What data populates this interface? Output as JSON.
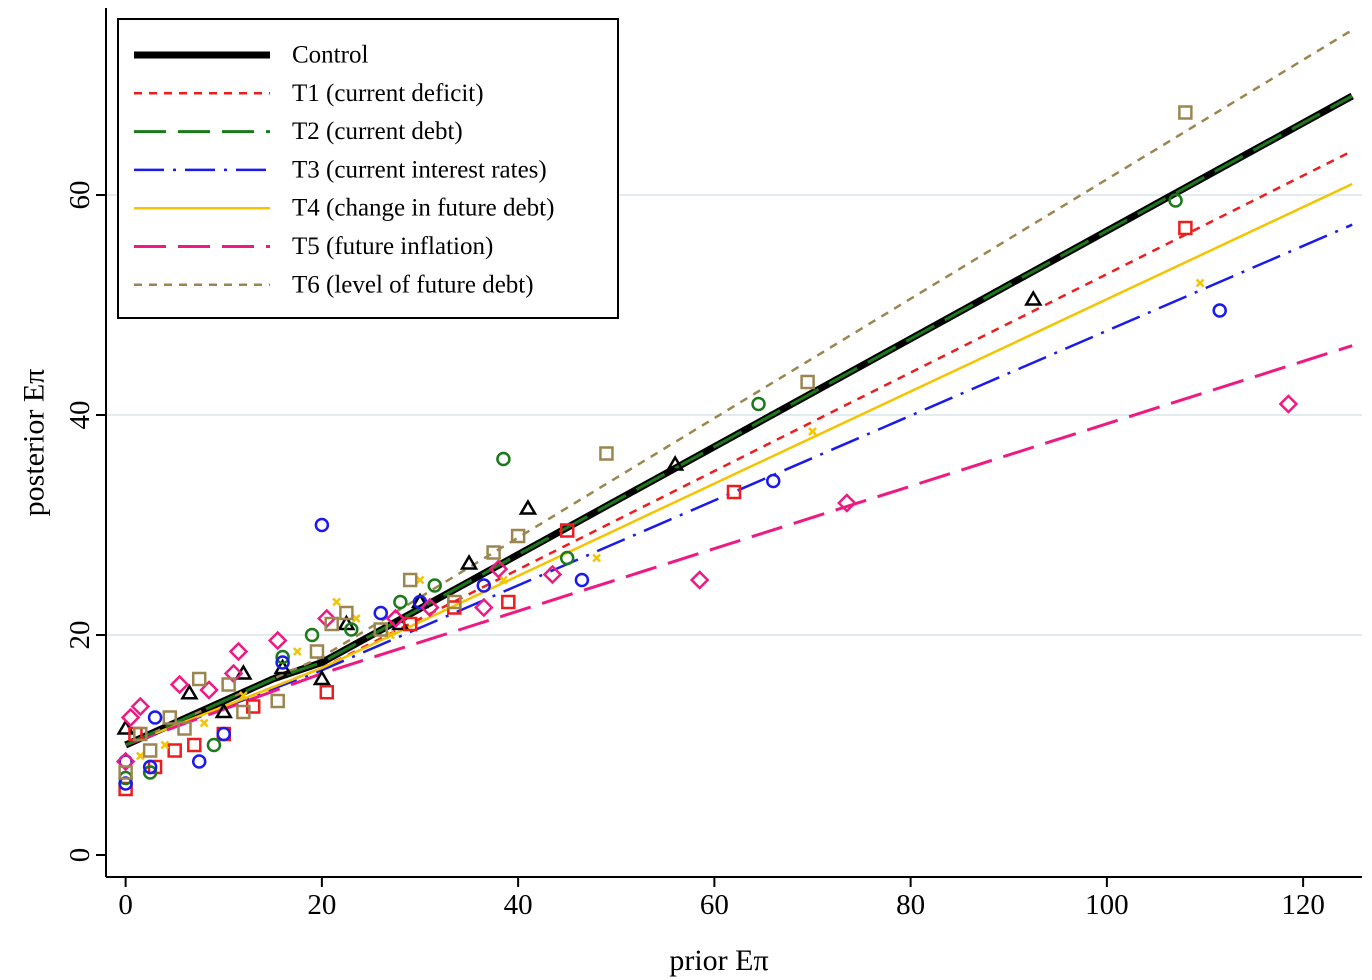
{
  "chart_data": {
    "type": "scatter",
    "title": "",
    "xlabel": "prior Eπ",
    "ylabel": "posterior Eπ",
    "xlim": [
      -2,
      126
    ],
    "ylim": [
      -2,
      77
    ],
    "xticks": [
      0,
      20,
      40,
      60,
      80,
      100,
      120
    ],
    "yticks": [
      0,
      20,
      40,
      60
    ],
    "grid": "horizontal",
    "legend_position": "top-left",
    "legend": [
      {
        "label": "Control",
        "color": "#000000",
        "style": "thick-solid"
      },
      {
        "label": "T1 (current deficit)",
        "color": "#ee1c1c",
        "style": "short-dash"
      },
      {
        "label": "T2 (current debt)",
        "color": "#1a7a1a",
        "style": "long-dash"
      },
      {
        "label": "T3 (current  interest rates)",
        "color": "#1a1aee",
        "style": "long-dash-dot"
      },
      {
        "label": "T4 (change in future debt)",
        "color": "#f5c400",
        "style": "solid"
      },
      {
        "label": "T5 (future inflation)",
        "color": "#ee1a82",
        "style": "long-dash"
      },
      {
        "label": "T6 (level of future debt)",
        "color": "#9c8650",
        "style": "short-dash"
      }
    ],
    "series": [
      {
        "name": "Control",
        "marker": "triangle",
        "color": "#000000",
        "fit_line": [
          [
            0,
            10
          ],
          [
            5,
            12
          ],
          [
            10,
            14
          ],
          [
            15,
            16
          ],
          [
            20,
            17.5
          ],
          [
            125,
            69
          ]
        ],
        "points": [
          [
            0,
            11.5
          ],
          [
            6.5,
            14.7
          ],
          [
            10,
            13
          ],
          [
            12,
            16.5
          ],
          [
            16,
            17
          ],
          [
            20,
            16
          ],
          [
            22.5,
            21
          ],
          [
            28,
            21
          ],
          [
            30,
            23
          ],
          [
            35,
            26.5
          ],
          [
            41,
            31.5
          ],
          [
            56,
            35.5
          ],
          [
            92.5,
            50.5
          ]
        ]
      },
      {
        "name": "T1 (current deficit)",
        "marker": "square",
        "color": "#ee1c1c",
        "fit_line": [
          [
            0,
            10
          ],
          [
            20,
            17
          ],
          [
            125,
            64
          ]
        ],
        "points": [
          [
            0,
            6
          ],
          [
            1,
            11
          ],
          [
            3,
            8
          ],
          [
            5,
            9.5
          ],
          [
            7,
            10
          ],
          [
            10,
            11
          ],
          [
            13,
            13.5
          ],
          [
            20.5,
            14.8
          ],
          [
            29,
            21
          ],
          [
            33.5,
            22.5
          ],
          [
            39,
            23
          ],
          [
            45,
            29.5
          ],
          [
            62,
            33
          ],
          [
            108,
            57
          ]
        ]
      },
      {
        "name": "T2 (current debt)",
        "marker": "circle",
        "color": "#1a7a1a",
        "fit_line": [
          [
            0,
            10
          ],
          [
            5,
            12
          ],
          [
            10,
            14
          ],
          [
            15,
            16
          ],
          [
            20,
            17.5
          ],
          [
            125,
            69
          ]
        ],
        "points": [
          [
            0,
            7
          ],
          [
            2.5,
            7.5
          ],
          [
            9,
            10
          ],
          [
            16,
            18
          ],
          [
            19,
            20
          ],
          [
            23,
            20.5
          ],
          [
            28,
            23
          ],
          [
            31.5,
            24.5
          ],
          [
            38.5,
            36
          ],
          [
            45,
            27
          ],
          [
            64.5,
            41
          ],
          [
            107,
            59.5
          ]
        ]
      },
      {
        "name": "T3 (current  interest rates)",
        "marker": "circle",
        "color": "#1a1aee",
        "fit_line": [
          [
            0,
            10
          ],
          [
            20,
            16.8
          ],
          [
            125,
            57.3
          ]
        ],
        "points": [
          [
            0,
            6.5
          ],
          [
            0,
            8.5
          ],
          [
            2.5,
            8
          ],
          [
            3,
            12.5
          ],
          [
            7.5,
            8.5
          ],
          [
            10,
            11
          ],
          [
            16,
            17.5
          ],
          [
            20,
            30
          ],
          [
            26,
            22
          ],
          [
            30,
            23
          ],
          [
            36.5,
            24.5
          ],
          [
            46.5,
            25
          ],
          [
            66,
            34
          ],
          [
            111.5,
            49.5
          ]
        ]
      },
      {
        "name": "T4 (change in future debt)",
        "marker": "x",
        "color": "#f5c400",
        "fit_line": [
          [
            0,
            10
          ],
          [
            20,
            17
          ],
          [
            125,
            61
          ]
        ],
        "points": [
          [
            1.5,
            9
          ],
          [
            4,
            10
          ],
          [
            8,
            12
          ],
          [
            12,
            14.5
          ],
          [
            17.5,
            18.5
          ],
          [
            21.5,
            23
          ],
          [
            23.5,
            21.5
          ],
          [
            27,
            20
          ],
          [
            30,
            25
          ],
          [
            38.5,
            25
          ],
          [
            48,
            27
          ],
          [
            70,
            38.5
          ],
          [
            109.5,
            52
          ]
        ]
      },
      {
        "name": "T5 (future inflation)",
        "marker": "diamond",
        "color": "#ee1a82",
        "fit_line": [
          [
            0,
            10
          ],
          [
            20,
            16.5
          ],
          [
            125,
            46.3
          ]
        ],
        "points": [
          [
            0,
            8.5
          ],
          [
            0.5,
            12.5
          ],
          [
            1.5,
            13.5
          ],
          [
            5.5,
            15.5
          ],
          [
            8.5,
            15
          ],
          [
            11,
            16.5
          ],
          [
            11.5,
            18.5
          ],
          [
            15.5,
            19.5
          ],
          [
            20.5,
            21.5
          ],
          [
            27.5,
            21.5
          ],
          [
            31,
            22.5
          ],
          [
            36.5,
            22.5
          ],
          [
            38,
            26
          ],
          [
            43.5,
            25.5
          ],
          [
            58.5,
            25
          ],
          [
            73.5,
            32
          ],
          [
            118.5,
            41
          ]
        ]
      },
      {
        "name": "T6 (level of future debt)",
        "marker": "square",
        "color": "#9c8650",
        "fit_line": [
          [
            0,
            10
          ],
          [
            20,
            18
          ],
          [
            125,
            75
          ]
        ],
        "points": [
          [
            0,
            7.5
          ],
          [
            1.5,
            11
          ],
          [
            2.5,
            9.5
          ],
          [
            4.5,
            12.5
          ],
          [
            6,
            11.5
          ],
          [
            7.5,
            16
          ],
          [
            10.5,
            15.5
          ],
          [
            12,
            13
          ],
          [
            15.5,
            14
          ],
          [
            19.5,
            18.5
          ],
          [
            21,
            21
          ],
          [
            22.5,
            22
          ],
          [
            26,
            20.5
          ],
          [
            29,
            25
          ],
          [
            33.5,
            23
          ],
          [
            37.5,
            27.5
          ],
          [
            40,
            29
          ],
          [
            49,
            36.5
          ],
          [
            69.5,
            43
          ],
          [
            108,
            67.5
          ]
        ]
      }
    ]
  }
}
